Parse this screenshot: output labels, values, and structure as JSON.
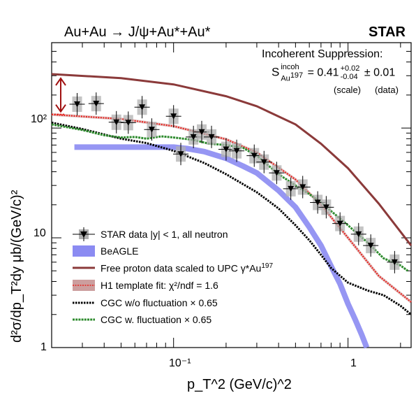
{
  "chart_data": {
    "type": "scatter",
    "title": "Au+Au → J/ψ+Au*+Au*",
    "experiment": "STAR",
    "xlabel": "p_T^2 (GeV/c)^2",
    "ylabel": "d²σ/dp_T²dy μb/(GeV/c)²",
    "xscale": "log",
    "yscale": "log",
    "xlim": [
      0.02,
      2.3
    ],
    "ylim": [
      1,
      600
    ],
    "x_ticks": [
      "10⁻¹",
      "1"
    ],
    "y_ticks": [
      "1",
      "10",
      "10²"
    ],
    "annotation": {
      "heading": "Incoherent Suppression:",
      "symbol": "S",
      "sup": "incoh",
      "sub": "Au",
      "sub_sup": "197",
      "value": "= 0.41",
      "plus": "+0.02",
      "minus": "-0.04",
      "stat": "± 0.01",
      "scale_label": "(scale)",
      "data_label": "(data)"
    },
    "legend_position": "bottom-left",
    "legend": {
      "star": "STAR data |y| < 1, all neutron",
      "beagle": "BeAGLE",
      "free_proton": "Free proton data scaled to UPC γ*Au",
      "free_proton_sup": "197",
      "h1": "H1 template fit: χ²/ndf = 1.6",
      "cgc_wo": "CGC w/o fluctuation × 0.65",
      "cgc_w": "CGC w. fluctuation × 0.65"
    },
    "colors": {
      "star": "#000000",
      "beagle": "#8b8bf2",
      "free_proton": "#8b3a3a",
      "h1": "#e8231e",
      "h1_band": "#cc9e9e",
      "cgc_wo": "#000000",
      "cgc_w": "#2e8b2e",
      "arrow": "#a01010"
    },
    "series": [
      {
        "name": "STAR data |y| < 1, all neutron",
        "kind": "points",
        "points": [
          {
            "x": 0.028,
            "y": 165
          },
          {
            "x": 0.036,
            "y": 167
          },
          {
            "x": 0.047,
            "y": 113
          },
          {
            "x": 0.055,
            "y": 112
          },
          {
            "x": 0.066,
            "y": 155
          },
          {
            "x": 0.075,
            "y": 97
          },
          {
            "x": 0.1,
            "y": 128
          },
          {
            "x": 0.11,
            "y": 58
          },
          {
            "x": 0.13,
            "y": 83
          },
          {
            "x": 0.145,
            "y": 92
          },
          {
            "x": 0.165,
            "y": 83
          },
          {
            "x": 0.2,
            "y": 64
          },
          {
            "x": 0.23,
            "y": 62
          },
          {
            "x": 0.29,
            "y": 56
          },
          {
            "x": 0.33,
            "y": 49
          },
          {
            "x": 0.39,
            "y": 39
          },
          {
            "x": 0.47,
            "y": 28
          },
          {
            "x": 0.55,
            "y": 29
          },
          {
            "x": 0.67,
            "y": 21
          },
          {
            "x": 0.75,
            "y": 19
          },
          {
            "x": 0.9,
            "y": 13.5
          },
          {
            "x": 1.15,
            "y": 10.8
          },
          {
            "x": 1.35,
            "y": 8.5
          },
          {
            "x": 1.85,
            "y": 6
          }
        ]
      },
      {
        "name": "Free proton data scaled to UPC γ*Au197",
        "kind": "line",
        "points": [
          {
            "x": 0.02,
            "y": 310
          },
          {
            "x": 0.05,
            "y": 285
          },
          {
            "x": 0.1,
            "y": 250
          },
          {
            "x": 0.2,
            "y": 195
          },
          {
            "x": 0.3,
            "y": 158
          },
          {
            "x": 0.5,
            "y": 108
          },
          {
            "x": 0.7,
            "y": 72
          },
          {
            "x": 1.0,
            "y": 43
          },
          {
            "x": 1.5,
            "y": 20.5
          },
          {
            "x": 2.3,
            "y": 8.5
          }
        ]
      },
      {
        "name": "H1 template fit: χ²/ndf = 1.6",
        "kind": "line",
        "points": [
          {
            "x": 0.02,
            "y": 133
          },
          {
            "x": 0.05,
            "y": 121
          },
          {
            "x": 0.1,
            "y": 104
          },
          {
            "x": 0.2,
            "y": 79
          },
          {
            "x": 0.3,
            "y": 60
          },
          {
            "x": 0.5,
            "y": 34
          },
          {
            "x": 0.7,
            "y": 20
          },
          {
            "x": 1.0,
            "y": 10
          },
          {
            "x": 1.5,
            "y": 4.5
          },
          {
            "x": 2.3,
            "y": 2.6
          }
        ]
      },
      {
        "name": "BeAGLE",
        "kind": "band",
        "points": [
          {
            "x": 0.027,
            "y": 67
          },
          {
            "x": 0.1,
            "y": 67
          },
          {
            "x": 0.12,
            "y": 65
          },
          {
            "x": 0.15,
            "y": 61
          },
          {
            "x": 0.2,
            "y": 53
          },
          {
            "x": 0.25,
            "y": 45
          },
          {
            "x": 0.3,
            "y": 39
          },
          {
            "x": 0.4,
            "y": 27
          },
          {
            "x": 0.5,
            "y": 19
          },
          {
            "x": 0.6,
            "y": 12.5
          },
          {
            "x": 0.7,
            "y": 8.5
          },
          {
            "x": 0.8,
            "y": 5.5
          },
          {
            "x": 0.9,
            "y": 3.8
          },
          {
            "x": 1.0,
            "y": 2.5
          },
          {
            "x": 1.1,
            "y": 1.8
          },
          {
            "x": 1.2,
            "y": 1.3
          },
          {
            "x": 1.28,
            "y": 1.0
          }
        ]
      },
      {
        "name": "CGC w/o fluctuation × 0.65",
        "kind": "dotted",
        "points": [
          {
            "x": 0.02,
            "y": 112
          },
          {
            "x": 0.03,
            "y": 98
          },
          {
            "x": 0.05,
            "y": 80
          },
          {
            "x": 0.07,
            "y": 73
          },
          {
            "x": 0.1,
            "y": 62
          },
          {
            "x": 0.15,
            "y": 48
          },
          {
            "x": 0.2,
            "y": 38
          },
          {
            "x": 0.3,
            "y": 26
          },
          {
            "x": 0.4,
            "y": 18.5
          },
          {
            "x": 0.5,
            "y": 13
          },
          {
            "x": 0.6,
            "y": 9.5
          },
          {
            "x": 0.7,
            "y": 7
          },
          {
            "x": 0.8,
            "y": 5.3
          },
          {
            "x": 1.0,
            "y": 3.9
          },
          {
            "x": 1.3,
            "y": 3.3
          },
          {
            "x": 1.6,
            "y": 3.0
          },
          {
            "x": 2.0,
            "y": 2.4
          },
          {
            "x": 2.3,
            "y": 2.0
          }
        ]
      },
      {
        "name": "CGC w. fluctuation × 0.65",
        "kind": "dotted",
        "points": [
          {
            "x": 0.02,
            "y": 108
          },
          {
            "x": 0.03,
            "y": 96
          },
          {
            "x": 0.04,
            "y": 86
          },
          {
            "x": 0.05,
            "y": 82
          },
          {
            "x": 0.06,
            "y": 83
          },
          {
            "x": 0.07,
            "y": 80
          },
          {
            "x": 0.085,
            "y": 84
          },
          {
            "x": 0.1,
            "y": 82
          },
          {
            "x": 0.13,
            "y": 78
          },
          {
            "x": 0.16,
            "y": 72
          },
          {
            "x": 0.2,
            "y": 70
          },
          {
            "x": 0.25,
            "y": 66
          },
          {
            "x": 0.3,
            "y": 56
          },
          {
            "x": 0.4,
            "y": 38
          },
          {
            "x": 0.5,
            "y": 30
          },
          {
            "x": 0.6,
            "y": 25
          },
          {
            "x": 0.7,
            "y": 21
          },
          {
            "x": 0.8,
            "y": 17.5
          },
          {
            "x": 1.0,
            "y": 13
          },
          {
            "x": 1.3,
            "y": 9
          },
          {
            "x": 1.6,
            "y": 6.5
          },
          {
            "x": 2.0,
            "y": 5.6
          },
          {
            "x": 2.2,
            "y": 5.0
          }
        ]
      }
    ]
  }
}
